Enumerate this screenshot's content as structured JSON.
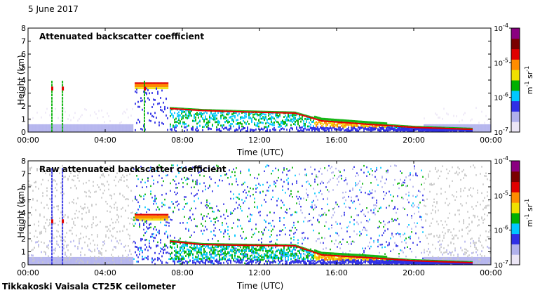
{
  "date_label": "5 June 2017",
  "footer": "Tikkakoski Vaisala CT25K ceilometer",
  "colors": {
    "scale": [
      "#ece6f6",
      "#b0b0ec",
      "#2f2fe6",
      "#00c8ff",
      "#00b000",
      "#f0e000",
      "#ff8c00",
      "#e00000",
      "#7a0000",
      "#8a0080"
    ],
    "noise_gray": "#c8c8c8",
    "frame": "#000000"
  },
  "chart_data": [
    {
      "type": "heatmap",
      "title": "Attenuated backscatter coefficient",
      "xlabel": "Time (UTC)",
      "ylabel": "Height (km)",
      "x_ticks": [
        "00:00",
        "04:00",
        "08:00",
        "12:00",
        "16:00",
        "20:00",
        "00:00"
      ],
      "xlim": [
        0,
        24
      ],
      "y_ticks": [
        "0",
        "1",
        "2",
        "3",
        "4",
        "5",
        "6",
        "7",
        "8"
      ],
      "ylim": [
        0,
        8
      ],
      "colorbar": {
        "ticks": [
          {
            "base": "10",
            "exp": "-4"
          },
          {
            "base": "10",
            "exp": "-5"
          },
          {
            "base": "10",
            "exp": "-6"
          },
          {
            "base": "10",
            "exp": "-7"
          }
        ],
        "unit": {
          "m": "m",
          "m_exp": "-1",
          "sr": "sr",
          "sr_exp": "-1"
        }
      },
      "features": {
        "layer_heights": [
          [
            7.3,
            1.75
          ],
          [
            9,
            1.6
          ],
          [
            11,
            1.5
          ],
          [
            13.8,
            1.4
          ],
          [
            15.2,
            0.8
          ],
          [
            17.5,
            0.55
          ],
          [
            20,
            0.3
          ],
          [
            23,
            0.15
          ]
        ],
        "cloud_high": {
          "t": [
            5.5,
            7.2
          ],
          "h": [
            3.3,
            4.1
          ]
        },
        "spikes_at": [
          1.2,
          1.75,
          6.0
        ]
      }
    },
    {
      "type": "heatmap",
      "title": "Raw attenuated backscatter coefficient",
      "xlabel": "Time (UTC)",
      "ylabel": "Height (km)",
      "x_ticks": [
        "00:00",
        "04:00",
        "08:00",
        "12:00",
        "16:00",
        "20:00",
        "00:00"
      ],
      "xlim": [
        0,
        24
      ],
      "y_ticks": [
        "0",
        "1",
        "2",
        "3",
        "4",
        "5",
        "6",
        "7",
        "8"
      ],
      "ylim": [
        0,
        8
      ],
      "colorbar": {
        "ticks": [
          {
            "base": "10",
            "exp": "-4"
          },
          {
            "base": "10",
            "exp": "-5"
          },
          {
            "base": "10",
            "exp": "-6"
          },
          {
            "base": "10",
            "exp": "-7"
          }
        ],
        "unit": {
          "m": "m",
          "m_exp": "-1",
          "sr": "sr",
          "sr_exp": "-1"
        }
      },
      "features": {
        "layer_heights": [
          [
            7.3,
            1.75
          ],
          [
            9,
            1.5
          ],
          [
            11,
            1.45
          ],
          [
            13.8,
            1.4
          ],
          [
            15.2,
            0.7
          ],
          [
            17.5,
            0.5
          ],
          [
            20,
            0.25
          ],
          [
            23,
            0.1
          ]
        ],
        "cloud_high": {
          "t": [
            5.5,
            7.2
          ],
          "h": [
            3.4,
            4.0
          ]
        },
        "spikes_at": [
          1.2,
          1.75
        ]
      }
    }
  ]
}
